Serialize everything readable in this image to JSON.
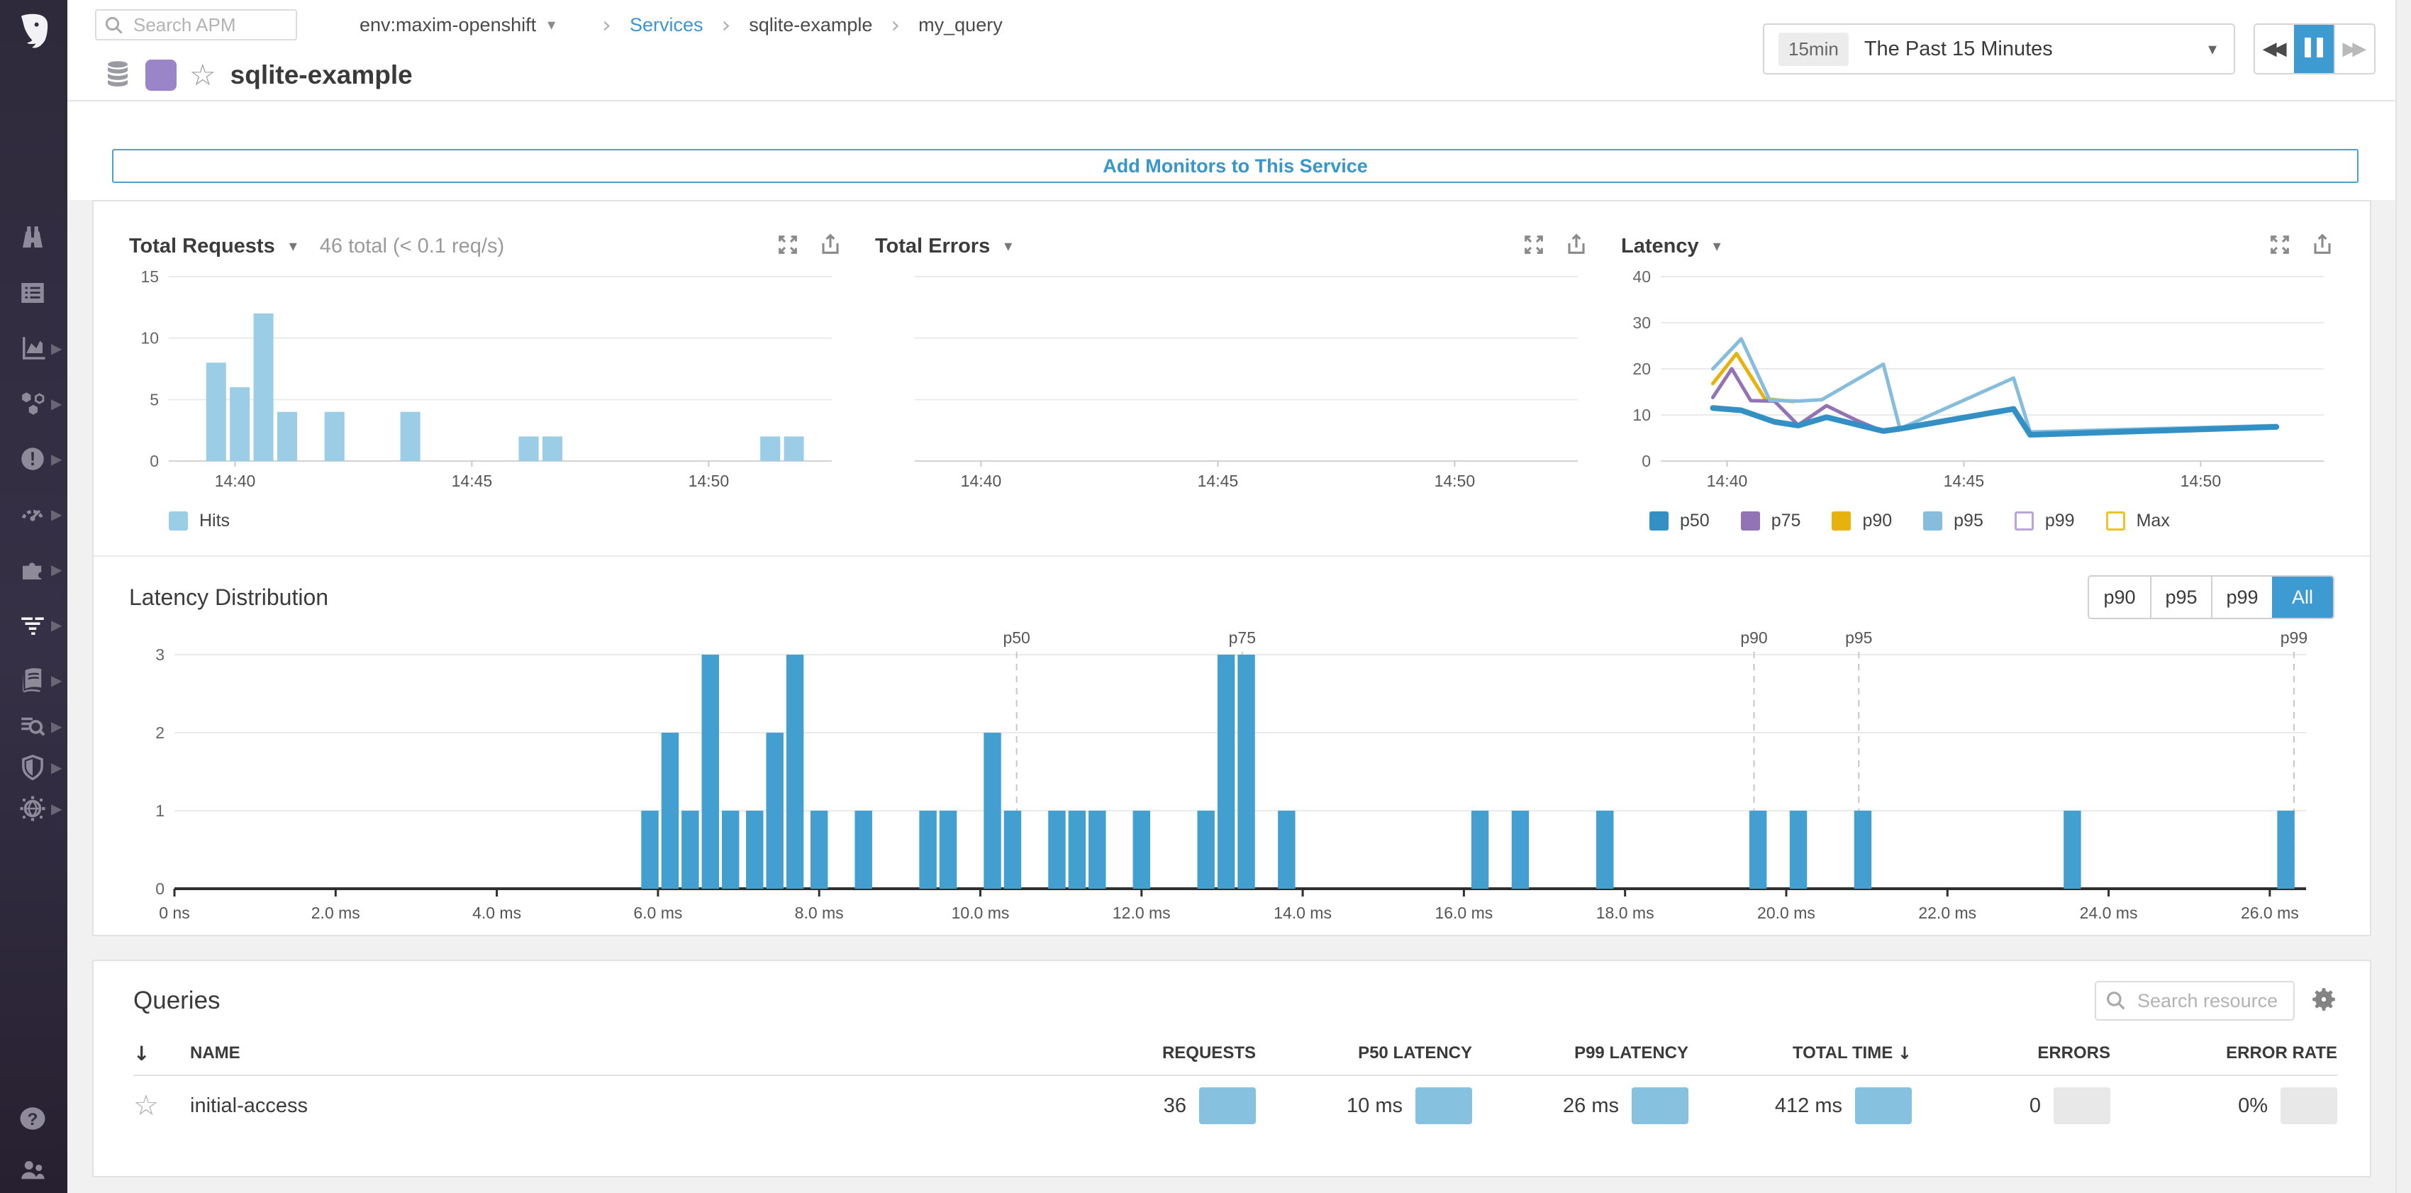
{
  "icons": {
    "caret_down": "▾",
    "chevron_right": "›",
    "star": "☆",
    "sort_down": "↓",
    "rewind": "◀◀",
    "forward": "▶▶"
  },
  "topbar": {
    "search_placeholder": "Search APM",
    "env": "env:maxim-openshift",
    "breadcrumb": [
      "Services",
      "sqlite-example",
      "my_query"
    ]
  },
  "header": {
    "title": "sqlite-example",
    "time_badge": "15min",
    "time_label": "The Past 15 Minutes"
  },
  "monitors_button_label": "Add Monitors to This Service",
  "latency_distribution": {
    "buttons": [
      "p90",
      "p95",
      "p99",
      "All"
    ],
    "active_button": "All"
  },
  "queries": {
    "title": "Queries",
    "search_placeholder": "Search resource",
    "columns": [
      "NAME",
      "REQUESTS",
      "P50 LATENCY",
      "P99 LATENCY",
      "TOTAL TIME",
      "ERRORS",
      "ERROR RATE"
    ],
    "sorted_column": "TOTAL TIME",
    "rows": [
      {
        "name": "initial-access",
        "requests": "36",
        "p50_latency": "10 ms",
        "p99_latency": "26 ms",
        "total_time": "412 ms",
        "errors": "0",
        "error_rate": "0%"
      }
    ]
  },
  "chart_data": [
    {
      "id": "total_requests",
      "type": "bar",
      "title": "Total Requests",
      "summary": "46 total (< 0.1 req/s)",
      "xlabel": "time",
      "ylabel": "hits",
      "xlim": [
        38.6,
        52.6
      ],
      "ylim": [
        0,
        15
      ],
      "yticks": [
        0,
        5,
        10,
        15
      ],
      "xticks": [
        {
          "v": 40,
          "label": "14:40"
        },
        {
          "v": 45,
          "label": "14:45"
        },
        {
          "v": 50,
          "label": "14:50"
        }
      ],
      "color": "#9bcde7",
      "bar_width_x": 0.42,
      "bars": [
        [
          39.6,
          8
        ],
        [
          40.1,
          6
        ],
        [
          40.6,
          12
        ],
        [
          41.1,
          4
        ],
        [
          42.1,
          4
        ],
        [
          43.7,
          4
        ],
        [
          46.2,
          2
        ],
        [
          46.7,
          2
        ],
        [
          51.3,
          2
        ],
        [
          51.8,
          2
        ]
      ],
      "legend": [
        {
          "label": "Hits",
          "color": "#9bcde7"
        }
      ]
    },
    {
      "id": "total_errors",
      "type": "bar",
      "title": "Total Errors",
      "summary": "",
      "xlim": [
        38.6,
        52.6
      ],
      "ylim": [
        0,
        15
      ],
      "yticks": [
        0,
        5,
        10,
        15
      ],
      "hide_y_labels": true,
      "xticks": [
        {
          "v": 40,
          "label": "14:40"
        },
        {
          "v": 45,
          "label": "14:45"
        },
        {
          "v": 50,
          "label": "14:50"
        }
      ],
      "color": "#9bcde7",
      "bar_width_x": 0.42,
      "bars": [],
      "legend": []
    },
    {
      "id": "latency",
      "type": "line",
      "title": "Latency",
      "summary": "",
      "xlim": [
        38.6,
        52.6
      ],
      "ylim": [
        0,
        40
      ],
      "yticks": [
        0,
        10,
        20,
        30,
        40
      ],
      "xticks": [
        {
          "v": 40,
          "label": "14:40"
        },
        {
          "v": 45,
          "label": "14:45"
        },
        {
          "v": 50,
          "label": "14:50"
        }
      ],
      "series": [
        {
          "name": "p90",
          "color": "#e7b10e",
          "width": 5,
          "points": [
            [
              39.7,
              16.8
            ],
            [
              40.2,
              23.3
            ],
            [
              40.8,
              13.5
            ],
            [
              41.4,
              12.9
            ]
          ]
        },
        {
          "name": "p75",
          "color": "#9273b5",
          "width": 5,
          "points": [
            [
              39.7,
              13.8
            ],
            [
              40.1,
              20
            ],
            [
              40.5,
              13.1
            ],
            [
              41.0,
              13
            ],
            [
              41.5,
              7.8
            ],
            [
              42.1,
              12
            ],
            [
              42.7,
              9
            ],
            [
              43.3,
              6.4
            ],
            [
              43.65,
              7
            ],
            [
              46.05,
              11.2
            ],
            [
              46.4,
              5.9
            ],
            [
              51.6,
              7.2
            ]
          ]
        },
        {
          "name": "p95",
          "color": "#86bddd",
          "width": 5,
          "points": [
            [
              39.7,
              20
            ],
            [
              40.3,
              26.5
            ],
            [
              40.9,
              13.2
            ],
            [
              41.5,
              13
            ],
            [
              42.0,
              13.3
            ],
            [
              43.3,
              21
            ],
            [
              43.65,
              7
            ],
            [
              46.05,
              18
            ],
            [
              46.4,
              6.3
            ],
            [
              51.6,
              7.7
            ]
          ]
        },
        {
          "name": "p50",
          "color": "#3390c4",
          "width": 8,
          "points": [
            [
              39.7,
              11.5
            ],
            [
              40.3,
              11
            ],
            [
              41.0,
              8.5
            ],
            [
              41.5,
              7.7
            ],
            [
              42.1,
              9.5
            ],
            [
              42.7,
              8
            ],
            [
              43.3,
              6.5
            ],
            [
              43.65,
              7
            ],
            [
              46.05,
              11.3
            ],
            [
              46.4,
              5.7
            ],
            [
              51.6,
              7.4
            ]
          ]
        }
      ],
      "legend": [
        {
          "label": "p50",
          "color": "#3390c4"
        },
        {
          "label": "p75",
          "color": "#9273b5"
        },
        {
          "label": "p90",
          "color": "#e7b10e"
        },
        {
          "label": "p95",
          "color": "#86bddd"
        },
        {
          "label": "p99",
          "color": "#ffffff",
          "border": "#b9a6d6"
        },
        {
          "label": "Max",
          "color": "#ffffff",
          "border": "#edc32c"
        }
      ]
    },
    {
      "id": "latency_distribution",
      "type": "histogram",
      "title": "Latency Distribution",
      "xlim": [
        0,
        26.45
      ],
      "ylim": [
        0,
        3
      ],
      "yticks": [
        0,
        1,
        2,
        3
      ],
      "xticks": [
        {
          "v": 0,
          "label": "0 ns"
        },
        {
          "v": 2,
          "label": "2.0 ms"
        },
        {
          "v": 4,
          "label": "4.0 ms"
        },
        {
          "v": 6,
          "label": "6.0 ms"
        },
        {
          "v": 8,
          "label": "8.0 ms"
        },
        {
          "v": 10,
          "label": "10.0 ms"
        },
        {
          "v": 12,
          "label": "12.0 ms"
        },
        {
          "v": 14,
          "label": "14.0 ms"
        },
        {
          "v": 16,
          "label": "16.0 ms"
        },
        {
          "v": 18,
          "label": "18.0 ms"
        },
        {
          "v": 20,
          "label": "20.0 ms"
        },
        {
          "v": 22,
          "label": "22.0 ms"
        },
        {
          "v": 24,
          "label": "24.0 ms"
        },
        {
          "v": 26,
          "label": "26.0 ms"
        }
      ],
      "color": "#429fd0",
      "bar_width_x": 0.215,
      "bars": [
        [
          5.9,
          1
        ],
        [
          6.15,
          2
        ],
        [
          6.4,
          1
        ],
        [
          6.65,
          3
        ],
        [
          6.9,
          1
        ],
        [
          7.2,
          1
        ],
        [
          7.45,
          2
        ],
        [
          7.7,
          3
        ],
        [
          8.0,
          1
        ],
        [
          8.55,
          1
        ],
        [
          9.35,
          1
        ],
        [
          9.6,
          1
        ],
        [
          10.15,
          2
        ],
        [
          10.4,
          1
        ],
        [
          10.95,
          1
        ],
        [
          11.2,
          1
        ],
        [
          11.45,
          1
        ],
        [
          12.0,
          1
        ],
        [
          12.8,
          1
        ],
        [
          13.05,
          3
        ],
        [
          13.3,
          3
        ],
        [
          13.8,
          1
        ],
        [
          16.2,
          1
        ],
        [
          16.7,
          1
        ],
        [
          17.75,
          1
        ],
        [
          19.65,
          1
        ],
        [
          20.15,
          1
        ],
        [
          20.95,
          1
        ],
        [
          23.55,
          1
        ],
        [
          26.2,
          1
        ]
      ],
      "percentiles": [
        {
          "label": "p50",
          "v": 10.45
        },
        {
          "label": "p75",
          "v": 13.25
        },
        {
          "label": "p90",
          "v": 19.6
        },
        {
          "label": "p95",
          "v": 20.9
        },
        {
          "label": "p99",
          "v": 26.3
        }
      ]
    }
  ]
}
